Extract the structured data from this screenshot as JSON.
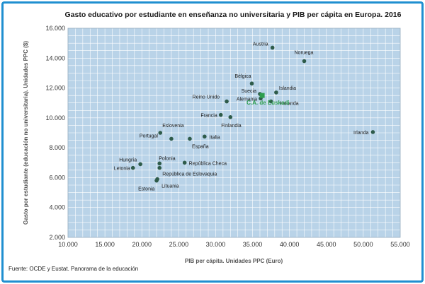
{
  "chart_data": {
    "type": "scatter",
    "title": "Gasto educativo por estudiante en enseñanza no universitaria y PIB per cápita en Europa. 2016",
    "xlabel": "PIB per cápita. Unidades PPC (Euro)",
    "ylabel": "Gasto por estudiante (educación no universitaria). Unidades PPC ($)",
    "xlim": [
      10000,
      55000
    ],
    "ylim": [
      2000,
      16000
    ],
    "x_ticks": [
      "10.000",
      "15.000",
      "20.000",
      "25.000",
      "30.000",
      "35.000",
      "40.000",
      "45.000",
      "50.000",
      "55.000"
    ],
    "y_ticks": [
      "2.000",
      "4.000",
      "6.000",
      "8.000",
      "10.000",
      "12.000",
      "14.000",
      "16.000"
    ],
    "grid": true,
    "highlight_color": "#2e9e4f",
    "point_color": "#2e5b4a",
    "points": [
      {
        "label": "Austria",
        "x": 37700,
        "y": 14700
      },
      {
        "label": "Noruega",
        "x": 42000,
        "y": 13800
      },
      {
        "label": "Bélgica",
        "x": 34900,
        "y": 12300
      },
      {
        "label": "Islandia",
        "x": 38200,
        "y": 11700
      },
      {
        "label": "Suecia",
        "x": 36000,
        "y": 11600
      },
      {
        "label": "Reino Unido",
        "x": 31500,
        "y": 11100
      },
      {
        "label": "Alemania",
        "x": 36100,
        "y": 11300
      },
      {
        "label": "Holanda",
        "x": 37500,
        "y": 11100
      },
      {
        "label": "C.A. de Euskadi",
        "x": 36300,
        "y": 11500,
        "highlight": true
      },
      {
        "label": "Francia",
        "x": 30700,
        "y": 10200
      },
      {
        "label": "Finlandia",
        "x": 32000,
        "y": 10050
      },
      {
        "label": "Eslovenia",
        "x": 22500,
        "y": 9000
      },
      {
        "label": "Portugal",
        "x": 24000,
        "y": 8600
      },
      {
        "label": "Italia",
        "x": 28500,
        "y": 8750
      },
      {
        "label": "España",
        "x": 26500,
        "y": 8600
      },
      {
        "label": "Irlanda",
        "x": 51300,
        "y": 9050
      },
      {
        "label": "Hungría",
        "x": 19800,
        "y": 6900
      },
      {
        "label": "Polonia",
        "x": 22400,
        "y": 6950
      },
      {
        "label": "República Checa",
        "x": 25800,
        "y": 7000
      },
      {
        "label": "Letonia",
        "x": 18800,
        "y": 6650
      },
      {
        "label": "República de Eslovaquia",
        "x": 22400,
        "y": 6650
      },
      {
        "label": "Estonia",
        "x": 22000,
        "y": 5800
      },
      {
        "label": "Lituania",
        "x": 22100,
        "y": 5900
      }
    ]
  },
  "source": "Fuente: OCDE y Eustat. Panorama de la educación"
}
